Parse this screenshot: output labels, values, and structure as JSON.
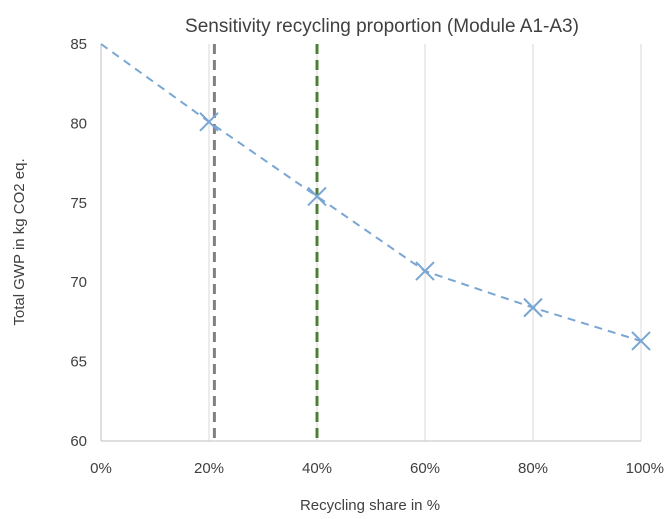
{
  "chart_data": {
    "type": "line",
    "title": "Sensitivity recycling proportion (Module A1-A3)",
    "xlabel": "Recycling share in %",
    "ylabel": "Total GWP in kg CO2 eq.",
    "x": [
      0,
      20,
      40,
      60,
      80,
      100
    ],
    "x_tick_labels": [
      "0%",
      "20%",
      "40%",
      "60%",
      "80%",
      "100%"
    ],
    "xlim": [
      0,
      100
    ],
    "ylim": [
      60,
      85
    ],
    "y_ticks": [
      60,
      65,
      70,
      75,
      80,
      85
    ],
    "series": [
      {
        "x": [
          0,
          20,
          40,
          60,
          80,
          100
        ],
        "values": [
          85.0,
          80.1,
          75.4,
          70.7,
          68.4,
          66.3
        ],
        "marker_points": [
          20,
          40,
          60,
          80,
          100
        ],
        "line_style": "dashed",
        "marker": "x",
        "color": "#7aa6d3"
      }
    ],
    "reference_lines": [
      {
        "x": 21,
        "orientation": "vertical",
        "style": "dashed",
        "color": "#808080"
      },
      {
        "x": 40,
        "orientation": "vertical",
        "style": "dashed",
        "color": "#4f7f35"
      }
    ],
    "grid": {
      "vertical": true,
      "horizontal": false,
      "color": "#d9d9d9"
    },
    "legend": "none"
  }
}
